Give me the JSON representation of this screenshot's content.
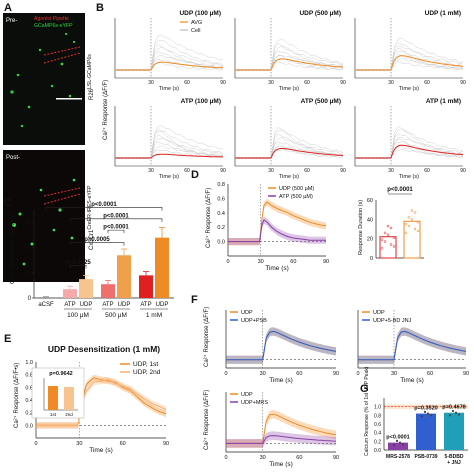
{
  "panel_letters": [
    "A",
    "B",
    "C",
    "D",
    "E",
    "F",
    "G"
  ],
  "panel_a": {
    "pre_label": "Pre-",
    "post_label": "Post-",
    "legend_pipette": "Agonist Pipette",
    "legend_gcamp": "GCaMP6s-eYFP",
    "genotype_top": "R26",
    "genotype_top_sup": "LSL-GCaMP6s",
    "genotype_bottom": "Cx3Cr1",
    "genotype_bottom_sup": "CreER-IRES-eYFP",
    "colors": {
      "pipette": "#e03030",
      "gcamp": "#30d040",
      "bg": "#0a0a0a"
    }
  },
  "panel_b": {
    "ylabel": "Ca²⁺ Response (ΔF/F)",
    "xlabel": "Time (s)",
    "legend_avg": "AVG",
    "legend_cell": "Cell",
    "ticks_x": [
      "30",
      "60",
      "90"
    ],
    "subplots": [
      {
        "title": "UDP (100 µM)",
        "color": "#f08a24"
      },
      {
        "title": "UDP (500 µM)",
        "color": "#f08a24"
      },
      {
        "title": "UDP (1 mM)",
        "color": "#f08a24"
      },
      {
        "title": "ATP (100 µM)",
        "color": "#e02020"
      },
      {
        "title": "ATP (500 µM)",
        "color": "#e02020"
      },
      {
        "title": "ATP (1 mM)",
        "color": "#e02020"
      }
    ]
  },
  "chart_data": [
    {
      "type": "bar",
      "panel": "C",
      "ylabel": "Ca²⁺ Response (ΔF/F•s)",
      "ylim": [
        0,
        35
      ],
      "yticks": [
        "0",
        "10",
        "20",
        "30"
      ],
      "categories": [
        "aCSF",
        "ATP",
        "UDP",
        "ATP",
        "UDP",
        "ATP",
        "UDP"
      ],
      "groups": [
        "100 µM",
        "500 µM",
        "1 mM"
      ],
      "values": [
        0.3,
        3.5,
        7.5,
        5.5,
        17,
        9,
        24
      ],
      "errors": [
        0.2,
        1.2,
        1.5,
        1.5,
        2.5,
        1.5,
        4
      ],
      "colors": [
        "#888888",
        "#f5a9a9",
        "#f7c48f",
        "#ef6f6f",
        "#f0a04a",
        "#e02020",
        "#f08a24"
      ],
      "pvalues": [
        "p=0.1425",
        "p=0.0005",
        "p<0.0001",
        "p<0.0001",
        "p<0.0001"
      ]
    },
    {
      "type": "line",
      "panel": "D",
      "ylabel": "Ca²⁺ Response (ΔF/F)",
      "xlabel": "Time (s)",
      "xlim": [
        0,
        90
      ],
      "ylim": [
        -0.2,
        0.8
      ],
      "xticks": [
        "0",
        "30",
        "60",
        "90"
      ],
      "yticks": [
        "0.0",
        "0.2",
        "0.4",
        "0.6",
        "0.8"
      ],
      "series": [
        {
          "name": "UDP (500 µM)",
          "color": "#f08a24",
          "x": [
            0,
            10,
            20,
            29,
            31,
            33,
            36,
            40,
            45,
            50,
            55,
            60,
            65,
            70,
            75,
            80,
            85,
            90
          ],
          "y": [
            0,
            0,
            0,
            0,
            0.3,
            0.5,
            0.55,
            0.5,
            0.46,
            0.43,
            0.4,
            0.36,
            0.33,
            0.3,
            0.27,
            0.25,
            0.23,
            0.22
          ]
        },
        {
          "name": "ATP (500 µM)",
          "color": "#8a3fa8",
          "x": [
            0,
            10,
            20,
            29,
            31,
            33,
            36,
            40,
            45,
            50,
            55,
            60,
            65,
            70,
            75,
            80,
            85,
            90
          ],
          "y": [
            0,
            0,
            0,
            0,
            0.22,
            0.3,
            0.27,
            0.2,
            0.14,
            0.1,
            0.07,
            0.05,
            0.04,
            0.03,
            0.02,
            0.02,
            0.02,
            0.02
          ]
        }
      ]
    },
    {
      "type": "bar",
      "panel": "D-inset",
      "ylabel": "Response Duration (s)",
      "ylim": [
        0,
        60
      ],
      "yticks": [
        "0",
        "20",
        "40",
        "60"
      ],
      "categories": [
        "ATP",
        "UDP"
      ],
      "values": [
        22,
        38
      ],
      "colors": [
        "#e02020",
        "#f08a24"
      ],
      "pvalue": "p<0.0001"
    },
    {
      "type": "line",
      "panel": "E",
      "title": "UDP Desensitization (1 mM)",
      "ylabel": "Ca²⁺ Response (ΔF/F•s)",
      "xlabel": "Time (s)",
      "xlim": [
        0,
        90
      ],
      "ylim": [
        -0.2,
        1.0
      ],
      "xticks": [
        "0",
        "30",
        "60",
        "90"
      ],
      "yticks": [
        "0.0",
        "0.2",
        "0.4",
        "0.6",
        "0.8",
        "1.0"
      ],
      "series": [
        {
          "name": "UDP, 1st",
          "color": "#f08a24",
          "x": [
            0,
            10,
            20,
            29,
            32,
            35,
            40,
            45,
            50,
            55,
            60,
            65,
            70,
            75,
            80,
            85,
            90
          ],
          "y": [
            0,
            0,
            0,
            0,
            0.4,
            0.65,
            0.75,
            0.72,
            0.7,
            0.68,
            0.6,
            0.55,
            0.45,
            0.35,
            0.28,
            0.22,
            0.18
          ]
        },
        {
          "name": "UDP, 2nd",
          "color": "#f7b070",
          "x": [
            0,
            10,
            20,
            29,
            32,
            35,
            40,
            45,
            50,
            55,
            60,
            65,
            70,
            75,
            80,
            85,
            90
          ],
          "y": [
            0,
            0,
            0,
            0,
            0.38,
            0.55,
            0.68,
            0.7,
            0.72,
            0.66,
            0.62,
            0.58,
            0.5,
            0.42,
            0.35,
            0.3,
            0.25
          ]
        }
      ],
      "inset": {
        "pvalue": "p=0.9642",
        "categories": [
          "1st",
          "2nd"
        ],
        "ylabel": "Response",
        "yticks": [
          "0",
          "5",
          "10",
          "15",
          "20"
        ]
      }
    },
    {
      "type": "line",
      "panel": "F",
      "ylabel": "Ca²⁺ Response (ΔF/F)",
      "xlabel": "Time (s)",
      "subplots": [
        {
          "series": [
            {
              "name": "UDP",
              "color": "#f08a24"
            },
            {
              "name": "UDP+PSB",
              "color": "#3060d0"
            }
          ]
        },
        {
          "series": [
            {
              "name": "UDP",
              "color": "#f08a24"
            },
            {
              "name": "UDP+5-BD JNJ",
              "color": "#3060d0"
            }
          ]
        },
        {
          "series": [
            {
              "name": "UDP",
              "color": "#f08a24"
            },
            {
              "name": "UDP+MRS",
              "color": "#8a3fa8"
            }
          ]
        }
      ]
    },
    {
      "type": "bar",
      "panel": "G",
      "ylabel": "Calcium Response (% of 1st UDP Peak)",
      "ylim": [
        0,
        1.2
      ],
      "yticks": [
        "0.0",
        "0.2",
        "0.4",
        "0.6",
        "0.8",
        "1.0"
      ],
      "categories": [
        "MRS-2578",
        "PSB-0739",
        "5-BDBD + JNJ"
      ],
      "values": [
        0.17,
        0.84,
        0.86
      ],
      "colors": [
        "#8a3fa8",
        "#3060d0",
        "#1fa0b8"
      ],
      "pvalues": [
        "p<0.0001",
        "p=0.3520",
        "p=0.4678"
      ]
    }
  ],
  "panel_g_categories": [
    "MRS-2578",
    "PSB-0739",
    "5-BDBD",
    "+ JNJ"
  ]
}
